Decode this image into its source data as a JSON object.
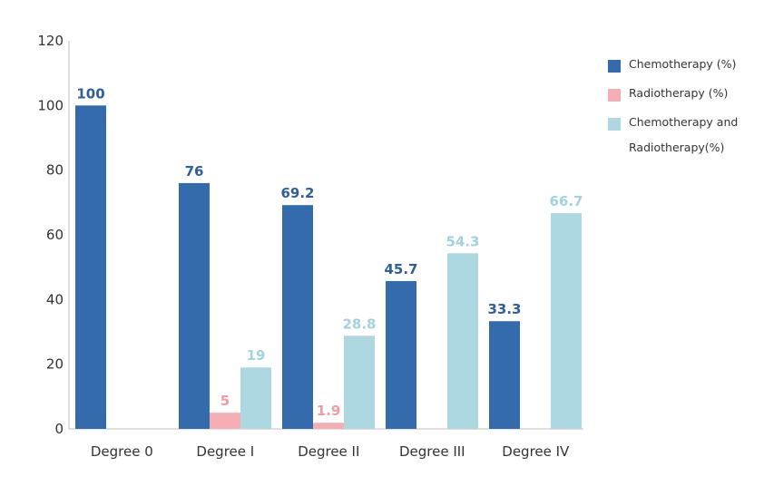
{
  "chart_data": {
    "type": "bar",
    "categories": [
      "Degree 0",
      "Degree I",
      "Degree II",
      "Degree III",
      "Degree IV"
    ],
    "series": [
      {
        "name": "Chemotherapy (%)",
        "color": "#336BAD",
        "label_color": "#2E5F99",
        "values": [
          100,
          76,
          69.2,
          45.7,
          33.3
        ],
        "labels": [
          "100",
          "76",
          "69.2",
          "45.7",
          "33.3"
        ]
      },
      {
        "name": "Radiotherapy (%)",
        "color": "#F4AEB4",
        "label_color": "#F19BA4",
        "values": [
          null,
          5,
          1.9,
          null,
          null
        ],
        "labels": [
          "",
          "5",
          "1.9",
          "",
          ""
        ]
      },
      {
        "name": "Chemotherapy and Radiotherapy(%)",
        "color": "#ADD8E2",
        "label_color": "#A2D2DE",
        "values": [
          null,
          19,
          28.8,
          54.3,
          66.7
        ],
        "labels": [
          "",
          "19",
          "28.8",
          "54.3",
          "66.7"
        ]
      }
    ],
    "yticks": [
      "0",
      "20",
      "40",
      "60",
      "80",
      "100",
      "120"
    ],
    "ylim": [
      0,
      120
    ],
    "grid": false,
    "legend_position": "right"
  }
}
